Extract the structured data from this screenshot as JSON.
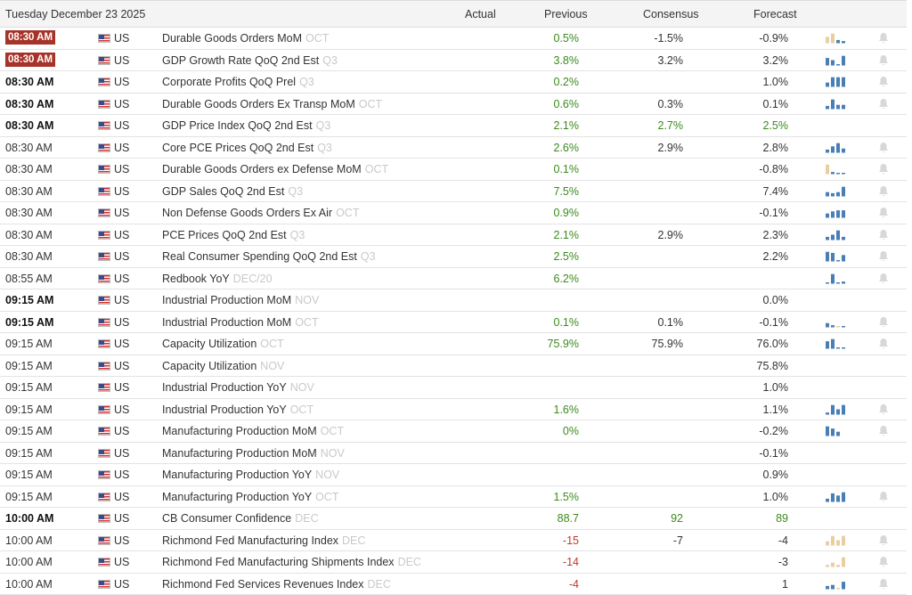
{
  "header": {
    "date": "Tuesday December 23 2025",
    "actual": "Actual",
    "previous": "Previous",
    "consensus": "Consensus",
    "forecast": "Forecast"
  },
  "colors": {
    "badge": "#a73228",
    "positive": "#3b8a1c",
    "negative": "#c0392b",
    "spark_blue": "#4a7fb5",
    "spark_tan": "#e8cfa0"
  },
  "rows": [
    {
      "time": "08:30 AM",
      "style": "badge",
      "country": "US",
      "event": "Durable Goods Orders MoM",
      "period": "OCT",
      "actual": "",
      "previous": "0.5%",
      "prev_color": "green",
      "consensus": "-1.5%",
      "cons_color": "dark",
      "forecast": "-0.9%",
      "fore_color": "dark",
      "spark": [
        {
          "v": 0.6,
          "c": "tan"
        },
        {
          "v": 0.9,
          "c": "tan"
        },
        {
          "v": 0.3,
          "c": "blue"
        },
        {
          "v": 0.2,
          "c": "blue"
        }
      ],
      "bell": true
    },
    {
      "time": "08:30 AM",
      "style": "badge",
      "country": "US",
      "event": "GDP Growth Rate QoQ 2nd Est",
      "period": "Q3",
      "actual": "",
      "previous": "3.8%",
      "prev_color": "green",
      "consensus": "3.2%",
      "cons_color": "dark",
      "forecast": "3.2%",
      "fore_color": "dark",
      "spark": [
        {
          "v": 0.7,
          "c": "blue"
        },
        {
          "v": 0.5,
          "c": "blue"
        },
        {
          "v": 0.1,
          "c": "blue"
        },
        {
          "v": 0.9,
          "c": "blue"
        }
      ],
      "bell": true
    },
    {
      "time": "08:30 AM",
      "style": "bold",
      "country": "US",
      "event": "Corporate Profits QoQ Prel",
      "period": "Q3",
      "actual": "",
      "previous": "0.2%",
      "prev_color": "green",
      "consensus": "",
      "cons_color": "dark",
      "forecast": "1.0%",
      "fore_color": "dark",
      "spark": [
        {
          "v": 0.4,
          "c": "blue"
        },
        {
          "v": 0.9,
          "c": "blue"
        },
        {
          "v": 0.9,
          "c": "blue"
        },
        {
          "v": 0.9,
          "c": "blue"
        }
      ],
      "bell": true
    },
    {
      "time": "08:30 AM",
      "style": "bold",
      "country": "US",
      "event": "Durable Goods Orders Ex Transp MoM",
      "period": "OCT",
      "actual": "",
      "previous": "0.6%",
      "prev_color": "green",
      "consensus": "0.3%",
      "cons_color": "dark",
      "forecast": "0.1%",
      "fore_color": "dark",
      "spark": [
        {
          "v": 0.3,
          "c": "blue"
        },
        {
          "v": 0.9,
          "c": "blue"
        },
        {
          "v": 0.4,
          "c": "blue"
        },
        {
          "v": 0.4,
          "c": "blue"
        }
      ],
      "bell": true
    },
    {
      "time": "08:30 AM",
      "style": "bold",
      "country": "US",
      "event": "GDP Price Index QoQ 2nd Est",
      "period": "Q3",
      "actual": "",
      "previous": "2.1%",
      "prev_color": "green",
      "consensus": "2.7%",
      "cons_color": "green",
      "forecast": "2.5%",
      "fore_color": "green",
      "spark": [],
      "bell": false
    },
    {
      "time": "08:30 AM",
      "style": "normal",
      "country": "US",
      "event": "Core PCE Prices QoQ 2nd Est",
      "period": "Q3",
      "actual": "",
      "previous": "2.6%",
      "prev_color": "green",
      "consensus": "2.9%",
      "cons_color": "dark",
      "forecast": "2.8%",
      "fore_color": "dark",
      "spark": [
        {
          "v": 0.3,
          "c": "blue"
        },
        {
          "v": 0.6,
          "c": "blue"
        },
        {
          "v": 0.9,
          "c": "blue"
        },
        {
          "v": 0.4,
          "c": "blue"
        }
      ],
      "bell": true
    },
    {
      "time": "08:30 AM",
      "style": "normal",
      "country": "US",
      "event": "Durable Goods Orders ex Defense MoM",
      "period": "OCT",
      "actual": "",
      "previous": "0.1%",
      "prev_color": "green",
      "consensus": "",
      "cons_color": "dark",
      "forecast": "-0.8%",
      "fore_color": "dark",
      "spark": [
        {
          "v": 0.9,
          "c": "tan"
        },
        {
          "v": 0.2,
          "c": "blue"
        },
        {
          "v": 0.1,
          "c": "blue"
        },
        {
          "v": 0.1,
          "c": "blue"
        }
      ],
      "bell": true
    },
    {
      "time": "08:30 AM",
      "style": "normal",
      "country": "US",
      "event": "GDP Sales QoQ 2nd Est",
      "period": "Q3",
      "actual": "",
      "previous": "7.5%",
      "prev_color": "green",
      "consensus": "",
      "cons_color": "dark",
      "forecast": "7.4%",
      "fore_color": "dark",
      "spark": [
        {
          "v": 0.4,
          "c": "blue"
        },
        {
          "v": 0.3,
          "c": "blue"
        },
        {
          "v": 0.4,
          "c": "blue"
        },
        {
          "v": 0.9,
          "c": "blue"
        }
      ],
      "bell": true
    },
    {
      "time": "08:30 AM",
      "style": "normal",
      "country": "US",
      "event": "Non Defense Goods Orders Ex Air",
      "period": "OCT",
      "actual": "",
      "previous": "0.9%",
      "prev_color": "green",
      "consensus": "",
      "cons_color": "dark",
      "forecast": "-0.1%",
      "fore_color": "dark",
      "spark": [
        {
          "v": 0.4,
          "c": "blue"
        },
        {
          "v": 0.6,
          "c": "blue"
        },
        {
          "v": 0.7,
          "c": "blue"
        },
        {
          "v": 0.7,
          "c": "blue"
        }
      ],
      "bell": true
    },
    {
      "time": "08:30 AM",
      "style": "normal",
      "country": "US",
      "event": "PCE Prices QoQ 2nd Est",
      "period": "Q3",
      "actual": "",
      "previous": "2.1%",
      "prev_color": "green",
      "consensus": "2.9%",
      "cons_color": "dark",
      "forecast": "2.3%",
      "fore_color": "dark",
      "spark": [
        {
          "v": 0.3,
          "c": "blue"
        },
        {
          "v": 0.5,
          "c": "blue"
        },
        {
          "v": 0.9,
          "c": "blue"
        },
        {
          "v": 0.3,
          "c": "blue"
        }
      ],
      "bell": true
    },
    {
      "time": "08:30 AM",
      "style": "normal",
      "country": "US",
      "event": "Real Consumer Spending QoQ 2nd Est",
      "period": "Q3",
      "actual": "",
      "previous": "2.5%",
      "prev_color": "green",
      "consensus": "",
      "cons_color": "dark",
      "forecast": "2.2%",
      "fore_color": "dark",
      "spark": [
        {
          "v": 0.9,
          "c": "blue"
        },
        {
          "v": 0.8,
          "c": "blue"
        },
        {
          "v": 0.1,
          "c": "blue"
        },
        {
          "v": 0.6,
          "c": "blue"
        }
      ],
      "bell": true
    },
    {
      "time": "08:55 AM",
      "style": "normal",
      "country": "US",
      "event": "Redbook YoY",
      "period": "DEC/20",
      "actual": "",
      "previous": "6.2%",
      "prev_color": "green",
      "consensus": "",
      "cons_color": "dark",
      "forecast": "",
      "fore_color": "dark",
      "spark": [
        {
          "v": 0.1,
          "c": "blue"
        },
        {
          "v": 0.9,
          "c": "blue"
        },
        {
          "v": 0.1,
          "c": "blue"
        },
        {
          "v": 0.2,
          "c": "blue"
        }
      ],
      "bell": true
    },
    {
      "time": "09:15 AM",
      "style": "bold",
      "country": "US",
      "event": "Industrial Production MoM",
      "period": "NOV",
      "actual": "",
      "previous": "",
      "prev_color": "green",
      "consensus": "",
      "cons_color": "dark",
      "forecast": "0.0%",
      "fore_color": "dark",
      "spark": [],
      "bell": false
    },
    {
      "time": "09:15 AM",
      "style": "bold",
      "country": "US",
      "event": "Industrial Production MoM",
      "period": "OCT",
      "actual": "",
      "previous": "0.1%",
      "prev_color": "green",
      "consensus": "0.1%",
      "cons_color": "dark",
      "forecast": "-0.1%",
      "fore_color": "dark",
      "spark": [
        {
          "v": 0.4,
          "c": "blue"
        },
        {
          "v": 0.2,
          "c": "blue"
        },
        {
          "v": 0.1,
          "c": "tan"
        },
        {
          "v": 0.1,
          "c": "blue"
        }
      ],
      "bell": true
    },
    {
      "time": "09:15 AM",
      "style": "normal",
      "country": "US",
      "event": "Capacity Utilization",
      "period": "OCT",
      "actual": "",
      "previous": "75.9%",
      "prev_color": "green",
      "consensus": "75.9%",
      "cons_color": "dark",
      "forecast": "76.0%",
      "fore_color": "dark",
      "spark": [
        {
          "v": 0.7,
          "c": "blue"
        },
        {
          "v": 0.9,
          "c": "blue"
        },
        {
          "v": 0.1,
          "c": "blue"
        },
        {
          "v": 0.1,
          "c": "blue"
        }
      ],
      "bell": true
    },
    {
      "time": "09:15 AM",
      "style": "normal",
      "country": "US",
      "event": "Capacity Utilization",
      "period": "NOV",
      "actual": "",
      "previous": "",
      "prev_color": "green",
      "consensus": "",
      "cons_color": "dark",
      "forecast": "75.8%",
      "fore_color": "dark",
      "spark": [],
      "bell": false
    },
    {
      "time": "09:15 AM",
      "style": "normal",
      "country": "US",
      "event": "Industrial Production YoY",
      "period": "NOV",
      "actual": "",
      "previous": "",
      "prev_color": "green",
      "consensus": "",
      "cons_color": "dark",
      "forecast": "1.0%",
      "fore_color": "dark",
      "spark": [],
      "bell": false
    },
    {
      "time": "09:15 AM",
      "style": "normal",
      "country": "US",
      "event": "Industrial Production YoY",
      "period": "OCT",
      "actual": "",
      "previous": "1.6%",
      "prev_color": "green",
      "consensus": "",
      "cons_color": "dark",
      "forecast": "1.1%",
      "fore_color": "dark",
      "spark": [
        {
          "v": 0.2,
          "c": "blue"
        },
        {
          "v": 0.9,
          "c": "blue"
        },
        {
          "v": 0.5,
          "c": "blue"
        },
        {
          "v": 0.9,
          "c": "blue"
        }
      ],
      "bell": true
    },
    {
      "time": "09:15 AM",
      "style": "normal",
      "country": "US",
      "event": "Manufacturing Production MoM",
      "period": "OCT",
      "actual": "",
      "previous": "0%",
      "prev_color": "green",
      "consensus": "",
      "cons_color": "dark",
      "forecast": "-0.2%",
      "fore_color": "dark",
      "spark": [
        {
          "v": 0.9,
          "c": "blue"
        },
        {
          "v": 0.7,
          "c": "blue"
        },
        {
          "v": 0.4,
          "c": "blue"
        }
      ],
      "bell": true
    },
    {
      "time": "09:15 AM",
      "style": "normal",
      "country": "US",
      "event": "Manufacturing Production MoM",
      "period": "NOV",
      "actual": "",
      "previous": "",
      "prev_color": "green",
      "consensus": "",
      "cons_color": "dark",
      "forecast": "-0.1%",
      "fore_color": "dark",
      "spark": [],
      "bell": false
    },
    {
      "time": "09:15 AM",
      "style": "normal",
      "country": "US",
      "event": "Manufacturing Production YoY",
      "period": "NOV",
      "actual": "",
      "previous": "",
      "prev_color": "green",
      "consensus": "",
      "cons_color": "dark",
      "forecast": "0.9%",
      "fore_color": "dark",
      "spark": [],
      "bell": false
    },
    {
      "time": "09:15 AM",
      "style": "normal",
      "country": "US",
      "event": "Manufacturing Production YoY",
      "period": "OCT",
      "actual": "",
      "previous": "1.5%",
      "prev_color": "green",
      "consensus": "",
      "cons_color": "dark",
      "forecast": "1.0%",
      "fore_color": "dark",
      "spark": [
        {
          "v": 0.3,
          "c": "blue"
        },
        {
          "v": 0.8,
          "c": "blue"
        },
        {
          "v": 0.6,
          "c": "blue"
        },
        {
          "v": 0.9,
          "c": "blue"
        }
      ],
      "bell": true
    },
    {
      "time": "10:00 AM",
      "style": "bold",
      "country": "US",
      "event": "CB Consumer Confidence",
      "period": "DEC",
      "actual": "",
      "previous": "88.7",
      "prev_color": "green",
      "consensus": "92",
      "cons_color": "green",
      "forecast": "89",
      "fore_color": "green",
      "spark": [],
      "bell": false
    },
    {
      "time": "10:00 AM",
      "style": "normal",
      "country": "US",
      "event": "Richmond Fed Manufacturing Index",
      "period": "DEC",
      "actual": "",
      "previous": "-15",
      "prev_color": "red",
      "consensus": "-7",
      "cons_color": "dark",
      "forecast": "-4",
      "fore_color": "dark",
      "spark": [
        {
          "v": 0.4,
          "c": "tan"
        },
        {
          "v": 0.9,
          "c": "tan"
        },
        {
          "v": 0.5,
          "c": "tan"
        },
        {
          "v": 0.9,
          "c": "tan"
        }
      ],
      "bell": true
    },
    {
      "time": "10:00 AM",
      "style": "normal",
      "country": "US",
      "event": "Richmond Fed Manufacturing Shipments Index",
      "period": "DEC",
      "actual": "",
      "previous": "-14",
      "prev_color": "red",
      "consensus": "",
      "cons_color": "dark",
      "forecast": "-3",
      "fore_color": "dark",
      "spark": [
        {
          "v": 0.2,
          "c": "tan"
        },
        {
          "v": 0.4,
          "c": "tan"
        },
        {
          "v": 0.2,
          "c": "tan"
        },
        {
          "v": 0.9,
          "c": "tan"
        }
      ],
      "bell": true
    },
    {
      "time": "10:00 AM",
      "style": "normal",
      "country": "US",
      "event": "Richmond Fed Services Revenues Index",
      "period": "DEC",
      "actual": "",
      "previous": "-4",
      "prev_color": "red",
      "consensus": "",
      "cons_color": "dark",
      "forecast": "1",
      "fore_color": "dark",
      "spark": [
        {
          "v": 0.3,
          "c": "blue"
        },
        {
          "v": 0.4,
          "c": "blue"
        },
        {
          "v": 0.1,
          "c": "tan"
        },
        {
          "v": 0.7,
          "c": "blue"
        }
      ],
      "bell": true
    }
  ]
}
